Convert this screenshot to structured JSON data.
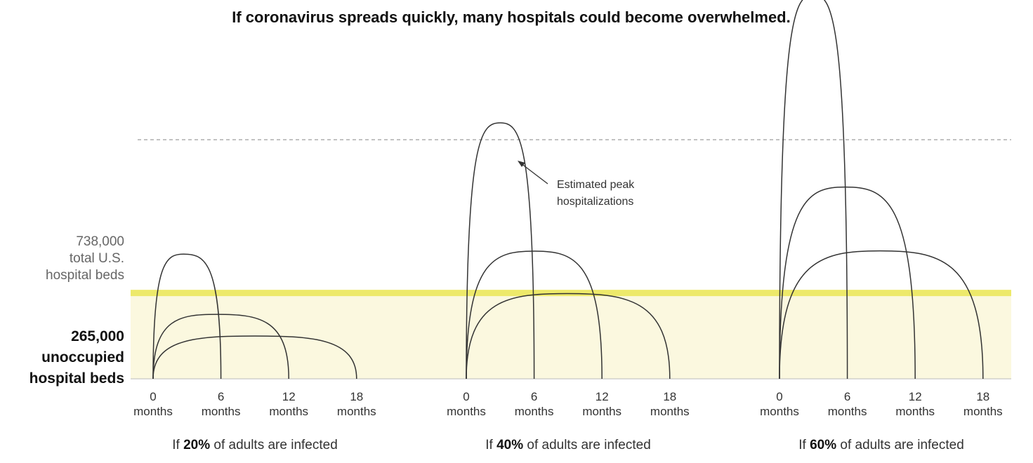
{
  "title": "If coronavirus spreads quickly, many hospitals could become overwhelmed.",
  "reference_lines": {
    "total_beds": {
      "value": 738000,
      "label_lines": [
        "738,000",
        "total U.S.",
        "hospital beds"
      ]
    },
    "unoccupied_beds": {
      "value": 265000,
      "label_lines": [
        "265,000",
        "unoccupied",
        "hospital beds"
      ]
    }
  },
  "annotation": {
    "lines": [
      "Estimated peak",
      "hospitalizations"
    ]
  },
  "colors": {
    "highlight": "#ede96a",
    "shade": "#fbf8df",
    "curve": "#333333",
    "dashed": "#888888",
    "axis": "#bbbbbb"
  },
  "tick_unit": "months",
  "chart_data": {
    "type": "line",
    "title": "If coronavirus spreads quickly, many hospitals could become overwhelmed.",
    "x_ticks": [
      0,
      6,
      12,
      18
    ],
    "x_unit": "months",
    "ylim": [
      0,
      1100000
    ],
    "panels": [
      {
        "label_pre": "If ",
        "label_pct": "20%",
        "label_post": " of adults are infected",
        "curves": [
          {
            "start": 0,
            "end": 6,
            "peak_month": 2.7,
            "peak": 385000
          },
          {
            "start": 0,
            "end": 12,
            "peak_month": 5.6,
            "peak": 199000
          },
          {
            "start": 0,
            "end": 18,
            "peak_month": 9,
            "peak": 132000
          }
        ]
      },
      {
        "label_pre": "If ",
        "label_pct": "40%",
        "label_post": " of adults are infected",
        "curves": [
          {
            "start": 0,
            "end": 6,
            "peak_month": 3,
            "peak": 790000
          },
          {
            "start": 0,
            "end": 12,
            "peak_month": 6,
            "peak": 394000
          },
          {
            "start": 0,
            "end": 18,
            "peak_month": 8.9,
            "peak": 263000
          }
        ]
      },
      {
        "label_pre": "If ",
        "label_pct": "60%",
        "label_post": " of adults are infected",
        "curves": [
          {
            "start": 0,
            "end": 6,
            "peak_month": 3,
            "peak": 1185000
          },
          {
            "start": 0,
            "end": 12,
            "peak_month": 5.8,
            "peak": 592000
          },
          {
            "start": 0,
            "end": 18,
            "peak_month": 8.9,
            "peak": 395000
          }
        ]
      }
    ]
  }
}
